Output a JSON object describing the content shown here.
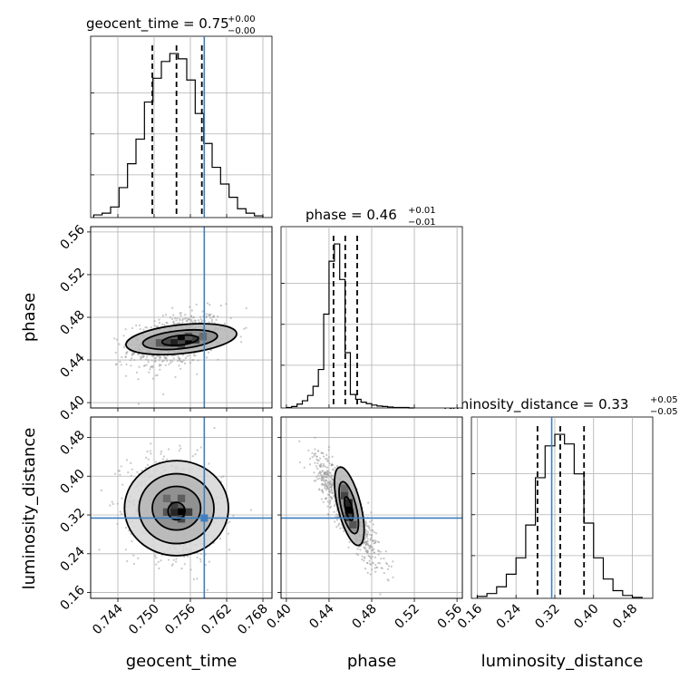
{
  "chart_data": {
    "type": "corner",
    "parameters": [
      "geocent_time",
      "phase",
      "luminosity_distance"
    ],
    "axis_labels": {
      "geocent_time": "geocent_time",
      "phase": "phase",
      "luminosity_distance": "luminosity_distance"
    },
    "ranges": {
      "geocent_time": [
        0.7395,
        0.7695
      ],
      "phase": [
        0.395,
        0.565
      ],
      "luminosity_distance": [
        0.148,
        0.522
      ]
    },
    "ticks": {
      "geocent_time": [
        "0.744",
        "0.750",
        "0.756",
        "0.762",
        "0.768"
      ],
      "phase": [
        "0.40",
        "0.44",
        "0.48",
        "0.52",
        "0.56"
      ],
      "luminosity_distance": [
        "0.16",
        "0.24",
        "0.32",
        "0.40",
        "0.48"
      ]
    },
    "titles": {
      "geocent_time": {
        "label": "geocent_time",
        "median": "0.75",
        "plus": "+0.00",
        "minus": "−0.00"
      },
      "phase": {
        "label": "phase",
        "median": "0.46",
        "plus": "+0.01",
        "minus": "−0.01"
      },
      "luminosity_distance": {
        "label": "luminosity_distance",
        "median": "0.33",
        "plus": "+0.05",
        "minus": "−0.05"
      }
    },
    "truth": {
      "geocent_time": 0.7583,
      "phase": null,
      "luminosity_distance": 0.3136
    },
    "quantiles": {
      "geocent_time": [
        0.7497,
        0.7537,
        0.7579
      ],
      "phase": [
        0.4442,
        0.4552,
        0.4664
      ],
      "luminosity_distance": [
        0.2843,
        0.3312,
        0.3803
      ]
    },
    "histograms": {
      "geocent_time": {
        "edges": [
          0.74,
          0.7414,
          0.7428,
          0.7442,
          0.7456,
          0.747,
          0.7484,
          0.7498,
          0.7512,
          0.7526,
          0.754,
          0.7554,
          0.7568,
          0.7582,
          0.7596,
          0.761,
          0.7624,
          0.7638,
          0.7652,
          0.7666,
          0.768
        ],
        "counts": [
          3,
          5,
          12,
          34,
          61,
          89,
          131,
          158,
          177,
          186,
          180,
          156,
          118,
          84,
          57,
          38,
          23,
          10,
          5,
          2
        ]
      },
      "phase": {
        "edges": [
          0.4,
          0.405,
          0.41,
          0.415,
          0.42,
          0.425,
          0.43,
          0.435,
          0.44,
          0.445,
          0.45,
          0.455,
          0.46,
          0.465,
          0.47,
          0.475,
          0.48,
          0.485,
          0.49,
          0.495,
          0.5,
          0.505,
          0.51,
          0.515,
          0.52
        ],
        "counts": [
          1,
          3,
          8,
          15,
          26,
          45,
          80,
          195,
          305,
          341,
          267,
          115,
          28,
          18,
          12,
          9,
          6,
          4,
          3,
          2,
          1,
          1,
          1,
          0
        ]
      },
      "luminosity_distance": {
        "edges": [
          0.16,
          0.18,
          0.2,
          0.22,
          0.24,
          0.26,
          0.28,
          0.3,
          0.32,
          0.34,
          0.36,
          0.38,
          0.4,
          0.42,
          0.44,
          0.46,
          0.48,
          0.5
        ],
        "counts": [
          2,
          5,
          12,
          25,
          42,
          76,
          125,
          158,
          170,
          160,
          129,
          78,
          42,
          20,
          8,
          3,
          1
        ]
      }
    },
    "pairs": [
      {
        "x": "geocent_time",
        "y": "phase",
        "scatter": {
          "cx": 0.7535,
          "cy": 0.458,
          "sx": 0.0034,
          "sy": 0.0115,
          "rho": 0.35,
          "n": 650
        },
        "density_cells": [
          {
            "x": 0.7545,
            "y": 0.459,
            "level": 0.95
          },
          {
            "x": 0.7557,
            "y": 0.459,
            "level": 0.95
          },
          {
            "x": 0.7533,
            "y": 0.456,
            "level": 0.8
          },
          {
            "x": 0.7521,
            "y": 0.456,
            "level": 0.55
          },
          {
            "x": 0.7569,
            "y": 0.459,
            "level": 0.6
          },
          {
            "x": 0.7509,
            "y": 0.456,
            "level": 0.4
          },
          {
            "x": 0.7545,
            "y": 0.455,
            "level": 0.55
          },
          {
            "x": 0.7557,
            "y": 0.462,
            "level": 0.45
          },
          {
            "x": 0.7581,
            "y": 0.462,
            "level": 0.3
          }
        ],
        "contours": [
          {
            "cx": 0.7543,
            "cy": 0.4585,
            "rx": 0.003,
            "ry": 0.0045,
            "angle": -6
          },
          {
            "cx": 0.7543,
            "cy": 0.459,
            "rx": 0.0062,
            "ry": 0.0085,
            "angle": -6
          },
          {
            "cx": 0.7545,
            "cy": 0.4595,
            "rx": 0.0092,
            "ry": 0.0135,
            "angle": -6
          }
        ]
      },
      {
        "x": "geocent_time",
        "y": "luminosity_distance",
        "scatter": {
          "cx": 0.7535,
          "cy": 0.333,
          "sx": 0.0034,
          "sy": 0.046,
          "rho": -0.15,
          "n": 750
        },
        "density_cells": [
          {
            "x": 0.7545,
            "y": 0.326,
            "level": 1.0
          },
          {
            "x": 0.7533,
            "y": 0.326,
            "level": 0.75
          },
          {
            "x": 0.7533,
            "y": 0.34,
            "level": 0.6
          },
          {
            "x": 0.7557,
            "y": 0.326,
            "level": 0.6
          },
          {
            "x": 0.7521,
            "y": 0.326,
            "level": 0.45
          },
          {
            "x": 0.7545,
            "y": 0.312,
            "level": 0.55
          },
          {
            "x": 0.7545,
            "y": 0.354,
            "level": 0.4
          },
          {
            "x": 0.7521,
            "y": 0.354,
            "level": 0.3
          }
        ],
        "contours": [
          {
            "cx": 0.7537,
            "cy": 0.328,
            "rx": 0.0014,
            "ry": 0.018,
            "angle": 0
          },
          {
            "cx": 0.7537,
            "cy": 0.334,
            "rx": 0.004,
            "ry": 0.045,
            "angle": 0
          },
          {
            "cx": 0.7537,
            "cy": 0.333,
            "rx": 0.0062,
            "ry": 0.072,
            "angle": 0
          },
          {
            "cx": 0.7537,
            "cy": 0.334,
            "rx": 0.0086,
            "ry": 0.098,
            "angle": 0
          }
        ]
      },
      {
        "x": "phase",
        "y": "luminosity_distance",
        "scatter": {
          "cx": 0.457,
          "cy": 0.333,
          "sx": 0.013,
          "sy": 0.048,
          "rho": -0.88,
          "n": 900
        },
        "density_cells": [
          {
            "x": 0.4585,
            "y": 0.33,
            "level": 1.0
          },
          {
            "x": 0.4585,
            "y": 0.345,
            "level": 0.75
          },
          {
            "x": 0.4585,
            "y": 0.315,
            "level": 0.6
          },
          {
            "x": 0.4545,
            "y": 0.36,
            "level": 0.55
          },
          {
            "x": 0.4625,
            "y": 0.3,
            "level": 0.45
          },
          {
            "x": 0.4545,
            "y": 0.375,
            "level": 0.3
          }
        ],
        "contours": [
          {
            "cx": 0.4585,
            "cy": 0.333,
            "rx": 0.0032,
            "ry": 0.025,
            "angle": -14
          },
          {
            "cx": 0.4585,
            "cy": 0.335,
            "rx": 0.007,
            "ry": 0.055,
            "angle": -14
          },
          {
            "cx": 0.459,
            "cy": 0.338,
            "rx": 0.0108,
            "ry": 0.083,
            "angle": -14
          }
        ]
      }
    ]
  }
}
